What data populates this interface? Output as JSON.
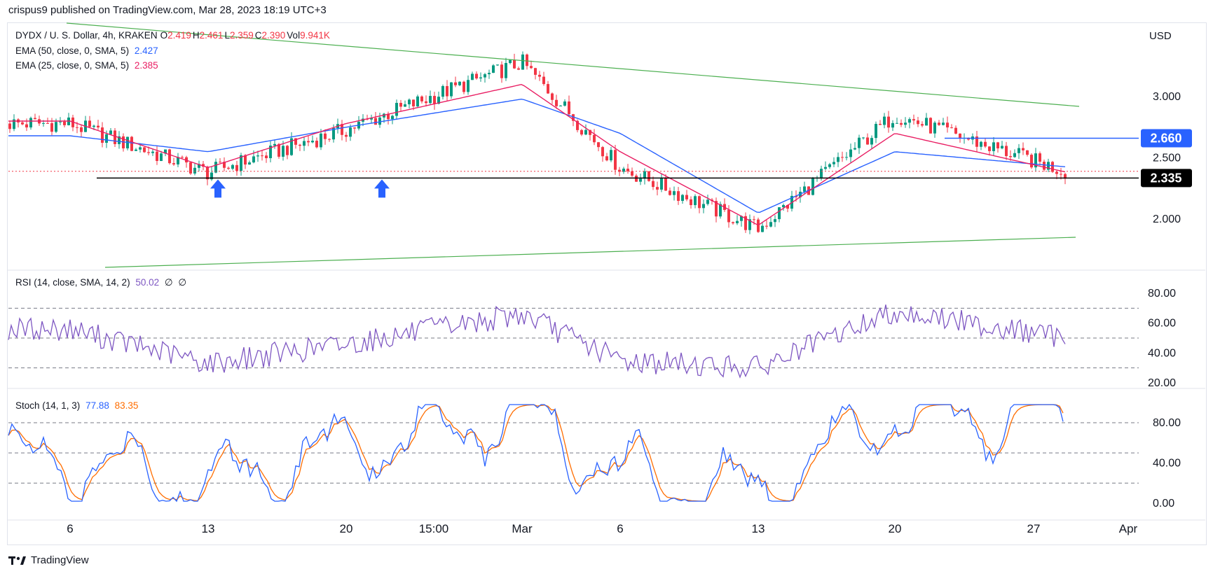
{
  "header": {
    "publisher_text": "crispus9 published on TradingView.com, Mar 28, 2023 18:19 UTC+3"
  },
  "footer": {
    "brand": "TradingView"
  },
  "price_pane": {
    "symbol": "DYDX / U. S. Dollar, 4h, KRAKEN",
    "ohlc": [
      {
        "k": "O",
        "v": "2.419"
      },
      {
        "k": "H",
        "v": "2.461"
      },
      {
        "k": "L",
        "v": "2.359"
      },
      {
        "k": "C",
        "v": "2.390"
      },
      {
        "k": "Vol",
        "v": "9.941K"
      }
    ],
    "ema50": {
      "label": "EMA (50, close, 0, SMA, 5)",
      "value": "2.427",
      "color": "#2962ff"
    },
    "ema25": {
      "label": "EMA (25, close, 0, SMA, 5)",
      "value": "2.385",
      "color": "#e91e63"
    },
    "currency": "USD",
    "ticks": [
      "3.000",
      "2.500",
      "2.000"
    ],
    "badges": [
      {
        "label": "2.660",
        "color": "#2962ff"
      },
      {
        "label": "2.335",
        "color": "#000000"
      }
    ]
  },
  "rsi_pane": {
    "label": "RSI (14, close, SMA, 14, 2)",
    "value": "50.02",
    "extra": [
      "∅",
      "∅"
    ],
    "color": "#7e57c2",
    "ticks": [
      "80.00",
      "60.00",
      "40.00",
      "20.00"
    ]
  },
  "stoch_pane": {
    "label": "Stoch (14, 1, 3)",
    "k_value": "77.88",
    "d_value": "83.35",
    "k_color": "#2962ff",
    "d_color": "#ff6d00",
    "ticks": [
      "80.00",
      "40.00",
      "0.00"
    ]
  },
  "x_axis": {
    "labels": [
      "6",
      "13",
      "20",
      "15:00",
      "Mar",
      "6",
      "13",
      "20",
      "27",
      "Apr"
    ]
  },
  "chart_data": [
    {
      "type": "line",
      "title": "DYDX / U. S. Dollar, 4h, KRAKEN",
      "ylabel": "USD",
      "ylim": [
        1.8,
        3.3
      ],
      "x": [
        "6",
        "13",
        "20",
        "Mar",
        "6",
        "13",
        "20",
        "27"
      ],
      "series": [
        {
          "name": "Close",
          "values": [
            2.78,
            2.38,
            2.73,
            3.28,
            2.42,
            1.92,
            2.85,
            2.39
          ]
        },
        {
          "name": "EMA (50, close, 0, SMA, 5)",
          "values": [
            2.68,
            2.55,
            2.75,
            2.98,
            2.7,
            2.05,
            2.55,
            2.427
          ]
        },
        {
          "name": "EMA (25, close, 0, SMA, 5)",
          "values": [
            2.8,
            2.42,
            2.78,
            3.1,
            2.55,
            1.95,
            2.7,
            2.385
          ]
        }
      ],
      "horizontal_levels": [
        2.335,
        2.66
      ],
      "trendlines": "descending upper trendline and ascending lower trendline (green)"
    },
    {
      "type": "line",
      "title": "RSI (14, close, SMA, 14, 2)",
      "ylim": [
        20,
        80
      ],
      "x": [
        "6",
        "13",
        "20",
        "Mar",
        "6",
        "13",
        "20",
        "27"
      ],
      "series": [
        {
          "name": "RSI",
          "values": [
            56,
            33,
            46,
            66,
            35,
            30,
            68,
            50.02
          ]
        }
      ],
      "reference_lines": [
        70,
        50,
        30
      ]
    },
    {
      "type": "line",
      "title": "Stoch (14, 1, 3)",
      "ylim": [
        0,
        100
      ],
      "x": [
        "6",
        "13",
        "20",
        "Mar",
        "6",
        "13",
        "20",
        "27"
      ],
      "series": [
        {
          "name": "%K",
          "values": [
            40,
            20,
            55,
            90,
            30,
            10,
            95,
            77.88
          ]
        },
        {
          "name": "%D",
          "values": [
            45,
            25,
            50,
            85,
            35,
            15,
            85,
            83.35
          ]
        }
      ],
      "reference_lines": [
        80,
        50,
        20
      ]
    }
  ]
}
